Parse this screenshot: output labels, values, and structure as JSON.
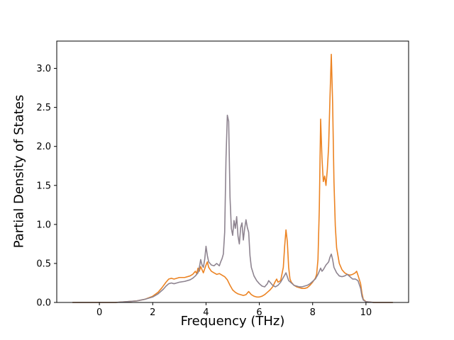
{
  "chart_data": {
    "type": "line",
    "title": "",
    "xlabel": "Frequency (THz)",
    "ylabel": "Partial Density of States",
    "xlim": [
      -1.6,
      11.6
    ],
    "ylim": [
      0,
      3.35
    ],
    "x_ticks": [
      0,
      2,
      4,
      6,
      8,
      10
    ],
    "y_ticks": [
      0.0,
      0.5,
      1.0,
      1.5,
      2.0,
      2.5,
      3.0
    ],
    "grid": false,
    "legend": false,
    "axis_color": "#000000",
    "background_color": "#ffffff",
    "series": [
      {
        "id": "orange",
        "color": "#ec8322",
        "points": [
          [
            -1.0,
            0
          ],
          [
            0.0,
            0
          ],
          [
            0.6,
            0
          ],
          [
            1.0,
            0.01
          ],
          [
            1.4,
            0.02
          ],
          [
            1.7,
            0.04
          ],
          [
            2.0,
            0.08
          ],
          [
            2.2,
            0.13
          ],
          [
            2.35,
            0.19
          ],
          [
            2.5,
            0.26
          ],
          [
            2.6,
            0.3
          ],
          [
            2.7,
            0.31
          ],
          [
            2.8,
            0.3
          ],
          [
            2.9,
            0.31
          ],
          [
            3.0,
            0.32
          ],
          [
            3.2,
            0.32
          ],
          [
            3.4,
            0.34
          ],
          [
            3.5,
            0.36
          ],
          [
            3.6,
            0.4
          ],
          [
            3.65,
            0.37
          ],
          [
            3.7,
            0.44
          ],
          [
            3.75,
            0.4
          ],
          [
            3.8,
            0.46
          ],
          [
            3.85,
            0.42
          ],
          [
            3.9,
            0.38
          ],
          [
            3.95,
            0.43
          ],
          [
            4.0,
            0.48
          ],
          [
            4.05,
            0.52
          ],
          [
            4.1,
            0.45
          ],
          [
            4.2,
            0.4
          ],
          [
            4.3,
            0.38
          ],
          [
            4.4,
            0.36
          ],
          [
            4.5,
            0.37
          ],
          [
            4.6,
            0.35
          ],
          [
            4.7,
            0.33
          ],
          [
            4.8,
            0.29
          ],
          [
            4.9,
            0.22
          ],
          [
            5.0,
            0.16
          ],
          [
            5.1,
            0.13
          ],
          [
            5.2,
            0.11
          ],
          [
            5.3,
            0.1
          ],
          [
            5.4,
            0.09
          ],
          [
            5.5,
            0.1
          ],
          [
            5.6,
            0.14
          ],
          [
            5.7,
            0.1
          ],
          [
            5.8,
            0.08
          ],
          [
            5.9,
            0.07
          ],
          [
            6.0,
            0.07
          ],
          [
            6.1,
            0.08
          ],
          [
            6.2,
            0.1
          ],
          [
            6.3,
            0.13
          ],
          [
            6.4,
            0.16
          ],
          [
            6.5,
            0.2
          ],
          [
            6.6,
            0.27
          ],
          [
            6.65,
            0.3
          ],
          [
            6.7,
            0.26
          ],
          [
            6.8,
            0.28
          ],
          [
            6.9,
            0.45
          ],
          [
            6.95,
            0.72
          ],
          [
            7.0,
            0.93
          ],
          [
            7.05,
            0.78
          ],
          [
            7.1,
            0.45
          ],
          [
            7.15,
            0.3
          ],
          [
            7.2,
            0.26
          ],
          [
            7.3,
            0.22
          ],
          [
            7.4,
            0.2
          ],
          [
            7.5,
            0.19
          ],
          [
            7.6,
            0.18
          ],
          [
            7.7,
            0.18
          ],
          [
            7.8,
            0.19
          ],
          [
            7.9,
            0.22
          ],
          [
            8.0,
            0.26
          ],
          [
            8.1,
            0.31
          ],
          [
            8.15,
            0.36
          ],
          [
            8.2,
            0.55
          ],
          [
            8.25,
            1.2
          ],
          [
            8.3,
            2.35
          ],
          [
            8.35,
            1.85
          ],
          [
            8.4,
            1.55
          ],
          [
            8.45,
            1.62
          ],
          [
            8.5,
            1.5
          ],
          [
            8.55,
            1.7
          ],
          [
            8.6,
            2.0
          ],
          [
            8.65,
            2.62
          ],
          [
            8.7,
            3.18
          ],
          [
            8.75,
            2.55
          ],
          [
            8.8,
            1.55
          ],
          [
            8.85,
            0.98
          ],
          [
            8.9,
            0.7
          ],
          [
            9.0,
            0.5
          ],
          [
            9.1,
            0.42
          ],
          [
            9.2,
            0.38
          ],
          [
            9.3,
            0.36
          ],
          [
            9.4,
            0.35
          ],
          [
            9.5,
            0.36
          ],
          [
            9.6,
            0.38
          ],
          [
            9.65,
            0.4
          ],
          [
            9.7,
            0.35
          ],
          [
            9.8,
            0.24
          ],
          [
            9.85,
            0.12
          ],
          [
            9.9,
            0.04
          ],
          [
            10.0,
            0.01
          ],
          [
            10.3,
            0.0
          ],
          [
            11.0,
            0.0
          ]
        ]
      },
      {
        "id": "gray",
        "color": "#8e8490",
        "points": [
          [
            -1.0,
            0
          ],
          [
            0.0,
            0
          ],
          [
            0.6,
            0
          ],
          [
            1.0,
            0.01
          ],
          [
            1.4,
            0.02
          ],
          [
            1.7,
            0.04
          ],
          [
            2.0,
            0.07
          ],
          [
            2.2,
            0.11
          ],
          [
            2.4,
            0.17
          ],
          [
            2.5,
            0.21
          ],
          [
            2.6,
            0.24
          ],
          [
            2.7,
            0.25
          ],
          [
            2.8,
            0.24
          ],
          [
            2.9,
            0.25
          ],
          [
            3.0,
            0.26
          ],
          [
            3.2,
            0.27
          ],
          [
            3.4,
            0.29
          ],
          [
            3.5,
            0.31
          ],
          [
            3.6,
            0.34
          ],
          [
            3.7,
            0.38
          ],
          [
            3.75,
            0.45
          ],
          [
            3.8,
            0.55
          ],
          [
            3.85,
            0.48
          ],
          [
            3.9,
            0.45
          ],
          [
            3.95,
            0.55
          ],
          [
            4.0,
            0.72
          ],
          [
            4.05,
            0.6
          ],
          [
            4.1,
            0.52
          ],
          [
            4.2,
            0.48
          ],
          [
            4.3,
            0.47
          ],
          [
            4.4,
            0.5
          ],
          [
            4.5,
            0.47
          ],
          [
            4.55,
            0.52
          ],
          [
            4.6,
            0.56
          ],
          [
            4.65,
            0.62
          ],
          [
            4.7,
            0.9
          ],
          [
            4.75,
            1.85
          ],
          [
            4.8,
            2.4
          ],
          [
            4.85,
            2.32
          ],
          [
            4.9,
            1.35
          ],
          [
            4.95,
            0.95
          ],
          [
            5.0,
            0.86
          ],
          [
            5.05,
            1.05
          ],
          [
            5.1,
            0.95
          ],
          [
            5.15,
            1.1
          ],
          [
            5.2,
            0.85
          ],
          [
            5.25,
            0.75
          ],
          [
            5.3,
            0.96
          ],
          [
            5.35,
            1.02
          ],
          [
            5.4,
            0.8
          ],
          [
            5.45,
            0.95
          ],
          [
            5.5,
            1.06
          ],
          [
            5.55,
            0.96
          ],
          [
            5.6,
            0.9
          ],
          [
            5.65,
            0.6
          ],
          [
            5.7,
            0.45
          ],
          [
            5.8,
            0.34
          ],
          [
            5.9,
            0.28
          ],
          [
            6.0,
            0.24
          ],
          [
            6.1,
            0.21
          ],
          [
            6.2,
            0.2
          ],
          [
            6.3,
            0.24
          ],
          [
            6.35,
            0.28
          ],
          [
            6.4,
            0.26
          ],
          [
            6.5,
            0.22
          ],
          [
            6.6,
            0.2
          ],
          [
            6.7,
            0.22
          ],
          [
            6.8,
            0.26
          ],
          [
            6.9,
            0.32
          ],
          [
            7.0,
            0.38
          ],
          [
            7.1,
            0.28
          ],
          [
            7.2,
            0.25
          ],
          [
            7.3,
            0.22
          ],
          [
            7.4,
            0.21
          ],
          [
            7.5,
            0.2
          ],
          [
            7.6,
            0.2
          ],
          [
            7.7,
            0.21
          ],
          [
            7.8,
            0.22
          ],
          [
            7.9,
            0.24
          ],
          [
            8.0,
            0.27
          ],
          [
            8.1,
            0.3
          ],
          [
            8.2,
            0.36
          ],
          [
            8.3,
            0.44
          ],
          [
            8.35,
            0.4
          ],
          [
            8.4,
            0.42
          ],
          [
            8.5,
            0.48
          ],
          [
            8.6,
            0.52
          ],
          [
            8.65,
            0.58
          ],
          [
            8.7,
            0.62
          ],
          [
            8.75,
            0.55
          ],
          [
            8.8,
            0.45
          ],
          [
            8.9,
            0.38
          ],
          [
            9.0,
            0.34
          ],
          [
            9.1,
            0.33
          ],
          [
            9.2,
            0.34
          ],
          [
            9.3,
            0.36
          ],
          [
            9.4,
            0.33
          ],
          [
            9.5,
            0.3
          ],
          [
            9.6,
            0.3
          ],
          [
            9.7,
            0.28
          ],
          [
            9.8,
            0.18
          ],
          [
            9.85,
            0.08
          ],
          [
            9.9,
            0.03
          ],
          [
            10.0,
            0.01
          ],
          [
            10.3,
            0.0
          ],
          [
            11.0,
            0.0
          ]
        ]
      }
    ]
  }
}
